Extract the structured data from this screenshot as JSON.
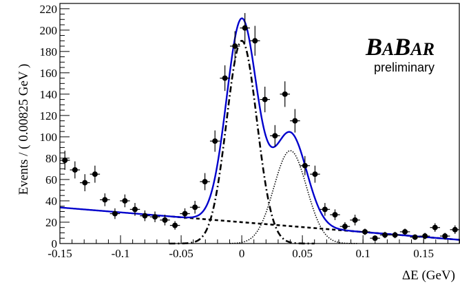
{
  "chart_data": {
    "type": "scatter",
    "xlabel": "ΔE (GeV)",
    "ylabel": "Events / ( 0.00825 GeV )",
    "xlim": [
      -0.15,
      0.18
    ],
    "ylim": [
      0,
      225
    ],
    "xticks": [
      -0.15,
      -0.1,
      -0.05,
      0,
      0.05,
      0.1,
      0.15
    ],
    "xtick_labels": [
      "-0.15",
      "-0.1",
      "-0.05",
      "0",
      "0.05",
      "0.1",
      "0.15"
    ],
    "yticks": [
      0,
      20,
      40,
      60,
      80,
      100,
      120,
      140,
      160,
      180,
      200,
      220
    ],
    "ytick_labels": [
      "0",
      "20",
      "40",
      "60",
      "80",
      "100",
      "120",
      "140",
      "160",
      "180",
      "200",
      "220"
    ],
    "brand_part1_cap": "B",
    "brand_part1_small": "A",
    "brand_part2_cap": "B",
    "brand_part2_small": "AR",
    "annotation": "preliminary",
    "bin_half_width": 0.004125,
    "data_points": [
      {
        "x": -0.1459,
        "y": 78,
        "err": 9
      },
      {
        "x": -0.1376,
        "y": 69,
        "err": 8
      },
      {
        "x": -0.1294,
        "y": 57,
        "err": 8
      },
      {
        "x": -0.1211,
        "y": 65,
        "err": 8
      },
      {
        "x": -0.1129,
        "y": 41,
        "err": 6
      },
      {
        "x": -0.1046,
        "y": 28,
        "err": 5
      },
      {
        "x": -0.0964,
        "y": 40,
        "err": 6
      },
      {
        "x": -0.0881,
        "y": 32,
        "err": 6
      },
      {
        "x": -0.0799,
        "y": 26,
        "err": 5
      },
      {
        "x": -0.0716,
        "y": 25,
        "err": 5
      },
      {
        "x": -0.0634,
        "y": 22,
        "err": 5
      },
      {
        "x": -0.0551,
        "y": 17,
        "err": 4
      },
      {
        "x": -0.0469,
        "y": 28,
        "err": 5
      },
      {
        "x": -0.0386,
        "y": 34,
        "err": 6
      },
      {
        "x": -0.0304,
        "y": 58,
        "err": 8
      },
      {
        "x": -0.0221,
        "y": 96,
        "err": 10
      },
      {
        "x": -0.0139,
        "y": 155,
        "err": 12
      },
      {
        "x": -0.0056,
        "y": 185,
        "err": 14
      },
      {
        "x": 0.0026,
        "y": 202,
        "err": 14
      },
      {
        "x": 0.0109,
        "y": 190,
        "err": 14
      },
      {
        "x": 0.0191,
        "y": 135,
        "err": 12
      },
      {
        "x": 0.0274,
        "y": 101,
        "err": 10
      },
      {
        "x": 0.0356,
        "y": 140,
        "err": 12
      },
      {
        "x": 0.0439,
        "y": 115,
        "err": 11
      },
      {
        "x": 0.0521,
        "y": 73,
        "err": 9
      },
      {
        "x": 0.0604,
        "y": 65,
        "err": 8
      },
      {
        "x": 0.0686,
        "y": 32,
        "err": 6
      },
      {
        "x": 0.0769,
        "y": 27,
        "err": 5
      },
      {
        "x": 0.0851,
        "y": 16,
        "err": 4
      },
      {
        "x": 0.0934,
        "y": 22,
        "err": 5
      },
      {
        "x": 0.1016,
        "y": 11,
        "err": 3
      },
      {
        "x": 0.1099,
        "y": 5,
        "err": 2.5
      },
      {
        "x": 0.1181,
        "y": 8,
        "err": 3
      },
      {
        "x": 0.1264,
        "y": 8,
        "err": 3
      },
      {
        "x": 0.1346,
        "y": 11,
        "err": 3
      },
      {
        "x": 0.1429,
        "y": 6,
        "err": 2.5
      },
      {
        "x": 0.1511,
        "y": 7,
        "err": 3
      },
      {
        "x": 0.1594,
        "y": 15,
        "err": 4
      },
      {
        "x": 0.1676,
        "y": 7,
        "err": 3
      },
      {
        "x": 0.1759,
        "y": 13,
        "err": 4
      }
    ],
    "fit_model": {
      "signal_peak_1": {
        "mean": 0.0,
        "sigma": 0.0125,
        "amplitude": 190,
        "style": "dash-dot"
      },
      "signal_peak_2": {
        "mean": 0.04,
        "sigma": 0.0135,
        "amplitude": 87,
        "style": "dotted"
      },
      "background": {
        "intercept": 20,
        "slope": -92,
        "style": "dashed"
      },
      "total": {
        "color": "#0000cc",
        "style": "solid"
      }
    },
    "grid": false,
    "legend": "none"
  }
}
